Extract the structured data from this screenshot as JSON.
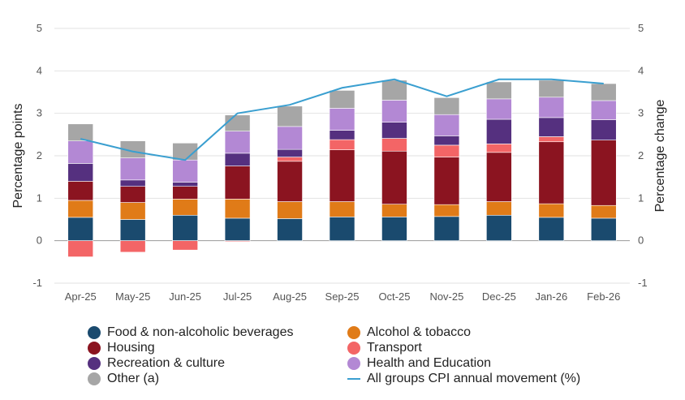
{
  "chart_data": {
    "type": "bar",
    "stacked": true,
    "title": "",
    "ylabel_left": "Percentage points",
    "ylabel_right": "Percentage change",
    "ylim": [
      -1,
      5
    ],
    "yticks": [
      "-1",
      "0",
      "1",
      "2",
      "3",
      "4",
      "5"
    ],
    "categories": [
      "Apr-25",
      "May-25",
      "Jun-25",
      "Jul-25",
      "Aug-25",
      "Sep-25",
      "Oct-25",
      "Nov-25",
      "Dec-25",
      "Jan-26",
      "Feb-26"
    ],
    "series": [
      {
        "name": "Food & non-alcoholic beverages",
        "color": "#1a4a6e",
        "values": [
          0.55,
          0.5,
          0.6,
          0.53,
          0.52,
          0.56,
          0.56,
          0.57,
          0.6,
          0.55,
          0.53
        ]
      },
      {
        "name": "Alcohol & tobacco",
        "color": "#e07b18",
        "values": [
          0.4,
          0.4,
          0.38,
          0.45,
          0.4,
          0.36,
          0.3,
          0.28,
          0.32,
          0.32,
          0.3
        ]
      },
      {
        "name": "Housing",
        "color": "#8b1420",
        "values": [
          0.45,
          0.38,
          0.3,
          0.78,
          0.95,
          1.22,
          1.25,
          1.12,
          1.16,
          1.46,
          1.54
        ]
      },
      {
        "name": "Transport",
        "color": "#f36566",
        "values": [
          -0.38,
          -0.27,
          -0.22,
          -0.02,
          0.1,
          0.24,
          0.3,
          0.28,
          0.2,
          0.12,
          0.0
        ]
      },
      {
        "name": "Recreation & culture",
        "color": "#55307f",
        "values": [
          0.42,
          0.15,
          0.1,
          0.3,
          0.18,
          0.22,
          0.38,
          0.22,
          0.58,
          0.45,
          0.48
        ]
      },
      {
        "name": "Health and Education",
        "color": "#b388d4",
        "values": [
          0.53,
          0.52,
          0.52,
          0.52,
          0.54,
          0.52,
          0.52,
          0.5,
          0.48,
          0.48,
          0.45
        ]
      },
      {
        "name": "Other (a)",
        "color": "#a6a6a6",
        "values": [
          0.4,
          0.4,
          0.4,
          0.38,
          0.48,
          0.42,
          0.47,
          0.4,
          0.4,
          0.4,
          0.4
        ]
      }
    ],
    "line": {
      "name": "All groups CPI annual movement (%)",
      "color": "#3a9fd0",
      "values": [
        2.4,
        2.1,
        1.9,
        3.0,
        3.2,
        3.6,
        3.8,
        3.4,
        3.8,
        3.8,
        3.7
      ]
    },
    "legend_position": "bottom"
  }
}
